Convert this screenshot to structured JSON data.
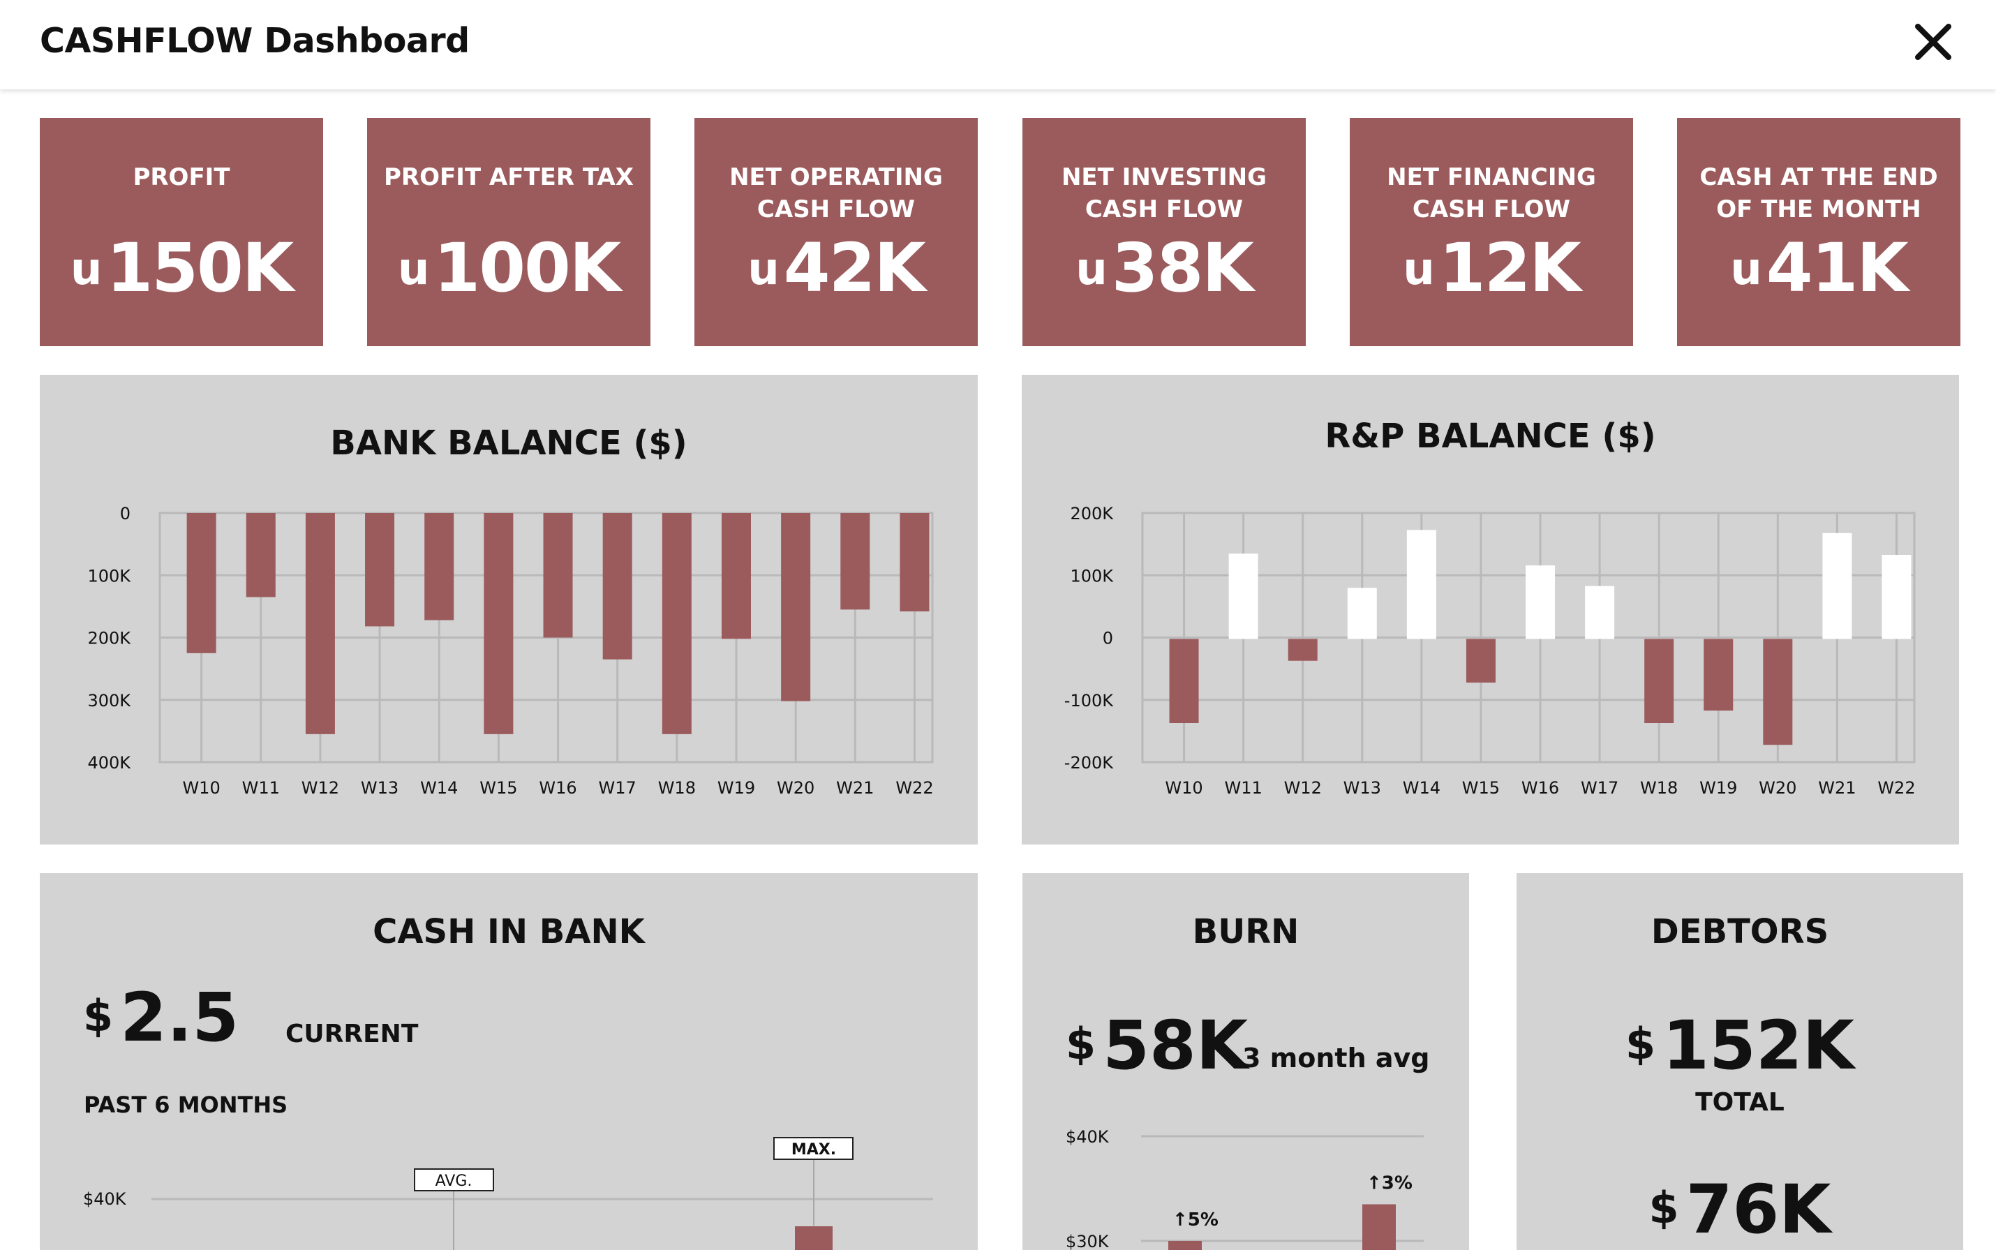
{
  "app": {
    "title": "CASHFLOW Dashboard"
  },
  "icons": {
    "close": "close-icon"
  },
  "colors": {
    "accent": "#9b5a5c",
    "panel_bg": "#d3d3d3",
    "positive_bar": "#ffffff"
  },
  "kpis": [
    {
      "label": "PROFIT",
      "currency": "u",
      "value": "150K"
    },
    {
      "label": "PROFIT AFTER TAX",
      "currency": "u",
      "value": "100K"
    },
    {
      "label": "NET OPERATING CASH FLOW",
      "currency": "u",
      "value": "42K"
    },
    {
      "label": "NET INVESTING CASH FLOW",
      "currency": "u",
      "value": "38K"
    },
    {
      "label": "NET FINANCING CASH FLOW",
      "currency": "u",
      "value": "12K"
    },
    {
      "label": "CASH AT THE END OF THE MONTH",
      "currency": "u",
      "value": "41K"
    }
  ],
  "cash_in_bank": {
    "title": "CASH IN BANK",
    "currency": "$",
    "value": "2.5",
    "current_label": "CURRENT",
    "period_label": "PAST 6 MONTHS",
    "avg_tag": "AVG.",
    "max_tag": "MAX."
  },
  "burn": {
    "title": "BURN",
    "currency": "$",
    "value": "58K",
    "suffix": "3 month avg"
  },
  "debtors": {
    "title": "DEBTORS",
    "currency": "$",
    "total_value": "152K",
    "total_label": "TOTAL",
    "second_value": "76K"
  },
  "chart_data": [
    {
      "type": "bar",
      "title": "BANK BALANCE ($)",
      "categories": [
        "W10",
        "W11",
        "W12",
        "W13",
        "W14",
        "W15",
        "W16",
        "W17",
        "W18",
        "W19",
        "W20",
        "W21",
        "W22"
      ],
      "values": [
        225000,
        135000,
        355000,
        182000,
        172000,
        355000,
        200000,
        235000,
        355000,
        202000,
        302000,
        155000,
        158000
      ],
      "y_ticks": [
        "0",
        "100K",
        "200K",
        "300K",
        "400K"
      ],
      "ylim": [
        0,
        400000
      ],
      "y_axis_inverted": true,
      "grid": true,
      "xlabel": "",
      "ylabel": ""
    },
    {
      "type": "bar",
      "title": "R&P BALANCE ($)",
      "categories": [
        "W10",
        "W11",
        "W12",
        "W13",
        "W14",
        "W15",
        "W16",
        "W17",
        "W18",
        "W19",
        "W20",
        "W21",
        "W22"
      ],
      "values": [
        -135000,
        137000,
        -35000,
        82000,
        175000,
        -70000,
        118000,
        85000,
        -135000,
        -115000,
        -170000,
        170000,
        135000
      ],
      "y_ticks": [
        "200K",
        "100K",
        "0",
        "-100K",
        "-200K"
      ],
      "ylim": [
        -200000,
        200000
      ],
      "grid": true,
      "xlabel": "",
      "ylabel": ""
    },
    {
      "type": "line",
      "title": "",
      "y_ticks": [
        "$40K"
      ],
      "reference_markers": [
        "AVG.",
        "MAX."
      ]
    },
    {
      "type": "bar",
      "title": "",
      "y_ticks": [
        "$40K",
        "$30K"
      ],
      "values": [
        30000,
        33500
      ],
      "annotations": [
        "5%",
        "3%"
      ]
    }
  ]
}
